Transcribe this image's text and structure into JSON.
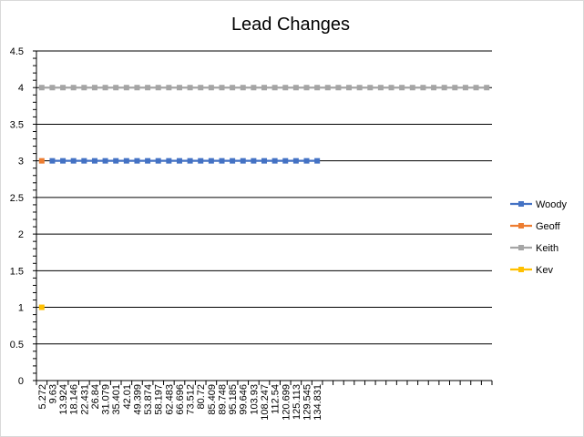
{
  "chart_data": {
    "type": "line",
    "title": "Lead Changes",
    "xlabel": "",
    "ylabel": "",
    "ylim": [
      0,
      4.5
    ],
    "y_ticks": [
      "0",
      "0.5",
      "1",
      "1.5",
      "2",
      "2.5",
      "3",
      "3.5",
      "4",
      "4.5"
    ],
    "x_tick_labels": [
      "5.272",
      "9.63",
      "13.924",
      "18.146",
      "22.431",
      "26.84",
      "31.079",
      "35.401",
      "42.01",
      "49.399",
      "53.874",
      "58.197",
      "62.483",
      "66.696",
      "73.512",
      "80.72",
      "85.409",
      "89.748",
      "95.185",
      "99.646",
      "103.93",
      "108.247",
      "112.54",
      "120.699",
      "125.113",
      "129.545",
      "134.831"
    ],
    "category_count": 43,
    "grid": true,
    "legend_position": "right",
    "series": [
      {
        "name": "Woody",
        "color": "#4472c4",
        "values": [
          null,
          3,
          3,
          3,
          3,
          3,
          3,
          3,
          3,
          3,
          3,
          3,
          3,
          3,
          3,
          3,
          3,
          3,
          3,
          3,
          3,
          3,
          3,
          3,
          3,
          3,
          3
        ]
      },
      {
        "name": "Geoff",
        "color": "#ed7d31",
        "values": [
          3
        ]
      },
      {
        "name": "Keith",
        "color": "#a5a5a5",
        "values": [
          4,
          4,
          4,
          4,
          4,
          4,
          4,
          4,
          4,
          4,
          4,
          4,
          4,
          4,
          4,
          4,
          4,
          4,
          4,
          4,
          4,
          4,
          4,
          4,
          4,
          4,
          4,
          4,
          4,
          4,
          4,
          4,
          4,
          4,
          4,
          4,
          4,
          4,
          4,
          4,
          4,
          4,
          4
        ]
      },
      {
        "name": "Kev",
        "color": "#ffc000",
        "values": [
          1
        ]
      }
    ]
  }
}
